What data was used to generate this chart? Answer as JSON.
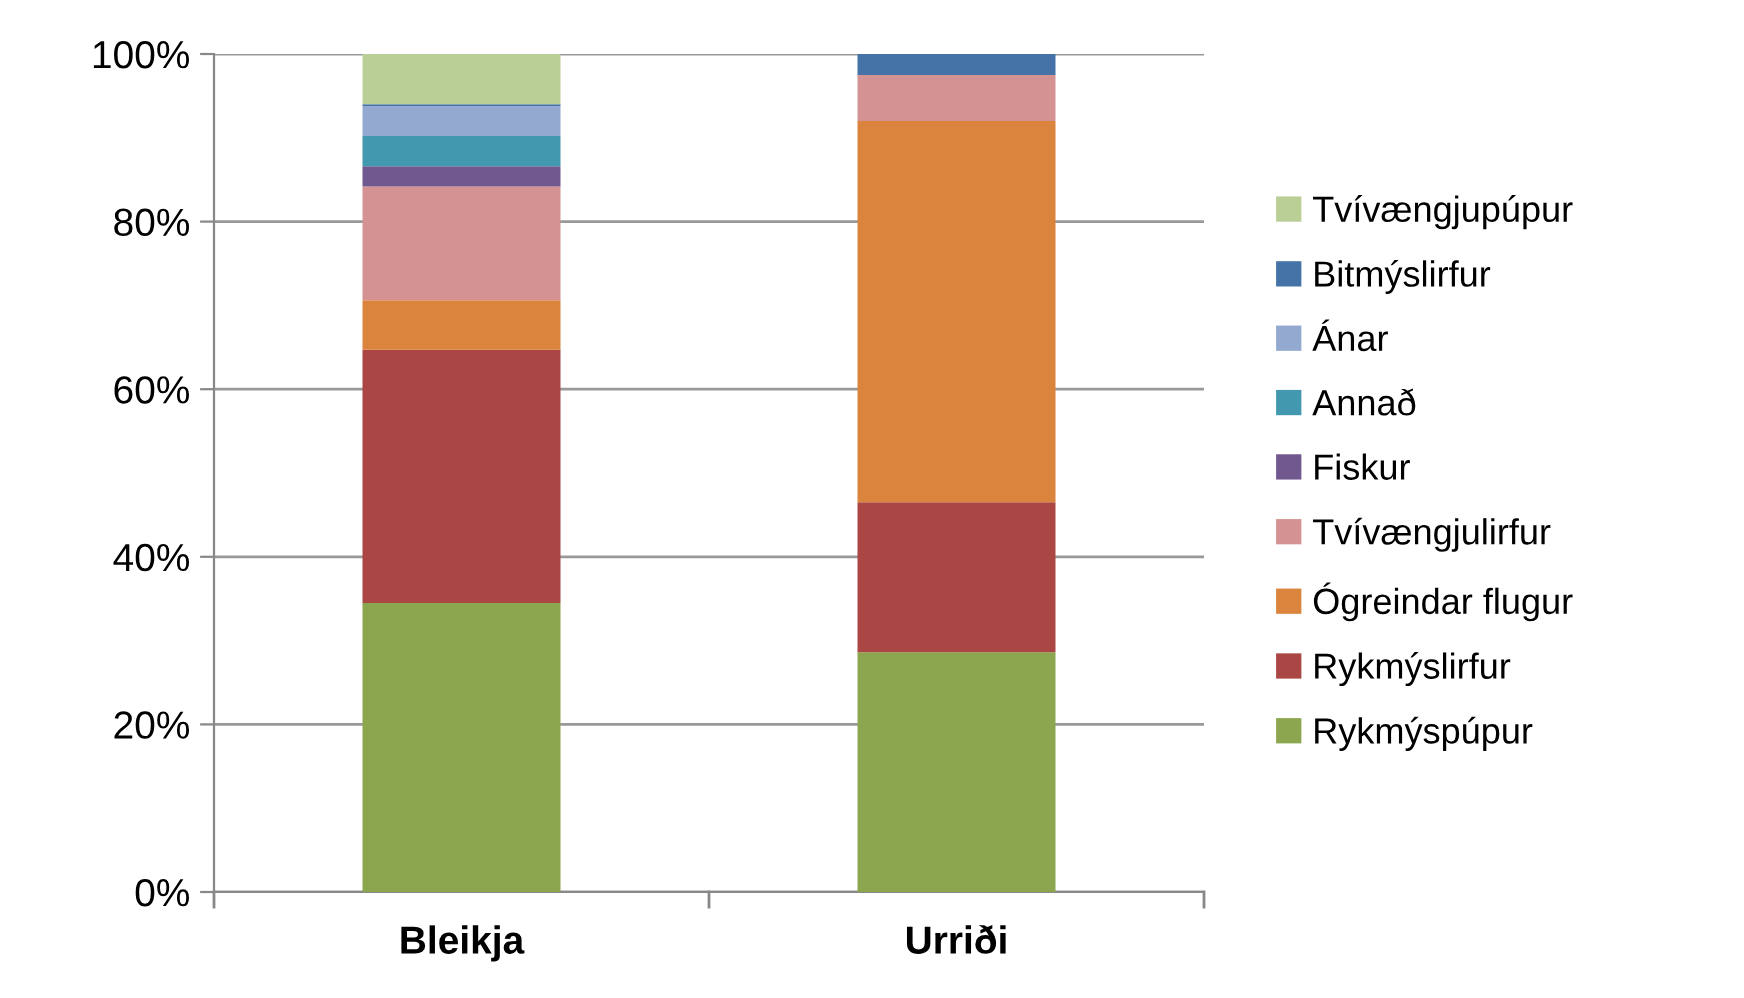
{
  "chart_data": {
    "type": "bar",
    "stacked": true,
    "categories": [
      "Bleikja",
      "Urriði"
    ],
    "series": [
      {
        "name": "Rykmýspúpur",
        "color": "#8ba64e",
        "values": [
          34.5,
          28.6
        ]
      },
      {
        "name": "Rykmýslirfur",
        "color": "#aa4643",
        "values": [
          30.2,
          17.9
        ]
      },
      {
        "name": "Ógreindar flugur",
        "color": "#db843d",
        "values": [
          5.9,
          45.5
        ]
      },
      {
        "name": "Tvívængjulirfur",
        "color": "#d49392",
        "values": [
          13.6,
          5.5
        ]
      },
      {
        "name": "Fiskur",
        "color": "#71588f",
        "values": [
          2.4,
          0
        ]
      },
      {
        "name": "Annað",
        "color": "#4198af",
        "values": [
          3.6,
          0
        ]
      },
      {
        "name": "Ánar",
        "color": "#93a9cf",
        "values": [
          3.6,
          0
        ]
      },
      {
        "name": "Bitmýslirfur",
        "color": "#4572a7",
        "values": [
          0.2,
          2.5
        ]
      },
      {
        "name": "Tvívængjupúpur",
        "color": "#b9cf96",
        "values": [
          6.0,
          0
        ]
      }
    ],
    "ylim": [
      0,
      100
    ],
    "yticks": [
      {
        "value": 0,
        "label": "0%"
      },
      {
        "value": 20,
        "label": "20%"
      },
      {
        "value": 40,
        "label": "40%"
      },
      {
        "value": 60,
        "label": "60%"
      },
      {
        "value": 80,
        "label": "80%"
      },
      {
        "value": 100,
        "label": "100%"
      }
    ],
    "grid": "y",
    "legend": "right"
  }
}
